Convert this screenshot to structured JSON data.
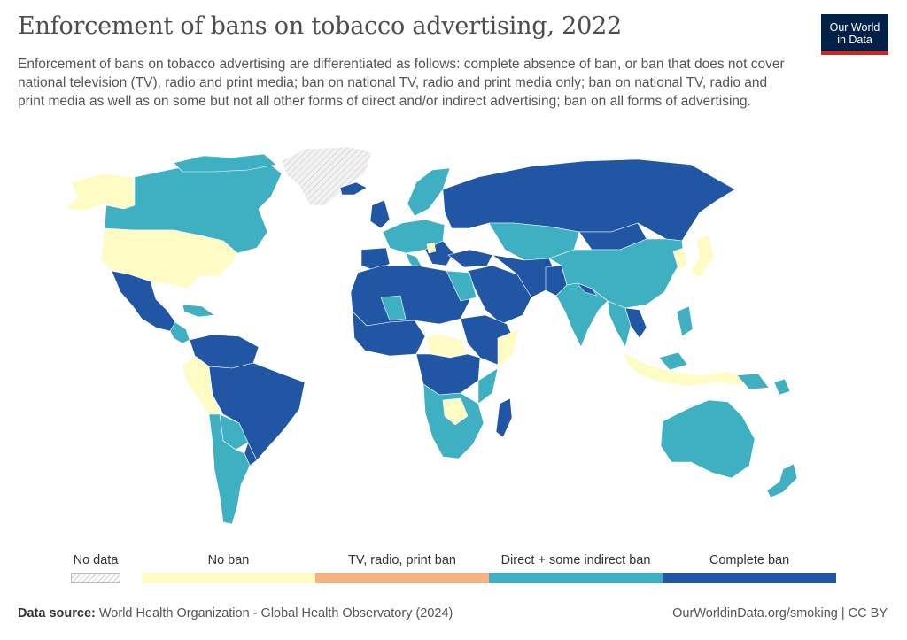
{
  "header": {
    "title": "Enforcement of bans on tobacco advertising, 2022",
    "subtitle": "Enforcement of bans on tobacco advertising are differentiated as follows: complete absence of ban, or ban that does not cover national television (TV), radio and print media; ban on national TV, radio and print media only; ban on national TV, radio and print media as well as on some but not all other forms of direct and/or indirect advertising; ban on all forms of advertising."
  },
  "logo": {
    "line1": "Our World",
    "line2": "in Data"
  },
  "legend": {
    "no_data_label": "No data",
    "categories": [
      {
        "label": "No ban",
        "color": "#fefbc4"
      },
      {
        "label": "TV, radio, print ban",
        "color": "#f6b183"
      },
      {
        "label": "Direct + some indirect ban",
        "color": "#3fb0c2"
      },
      {
        "label": "Complete ban",
        "color": "#2056a4"
      }
    ]
  },
  "colors": {
    "no_ban": "#fefbc4",
    "tv_radio_print": "#f6b183",
    "direct_some_indirect": "#3fb0c2",
    "complete": "#2056a4",
    "no_data": "#e6e6e6"
  },
  "footer": {
    "source_label": "Data source:",
    "source_text": " World Health Organization - Global Health Observatory (2024)",
    "url": "OurWorldinData.org/smoking | CC BY"
  }
}
